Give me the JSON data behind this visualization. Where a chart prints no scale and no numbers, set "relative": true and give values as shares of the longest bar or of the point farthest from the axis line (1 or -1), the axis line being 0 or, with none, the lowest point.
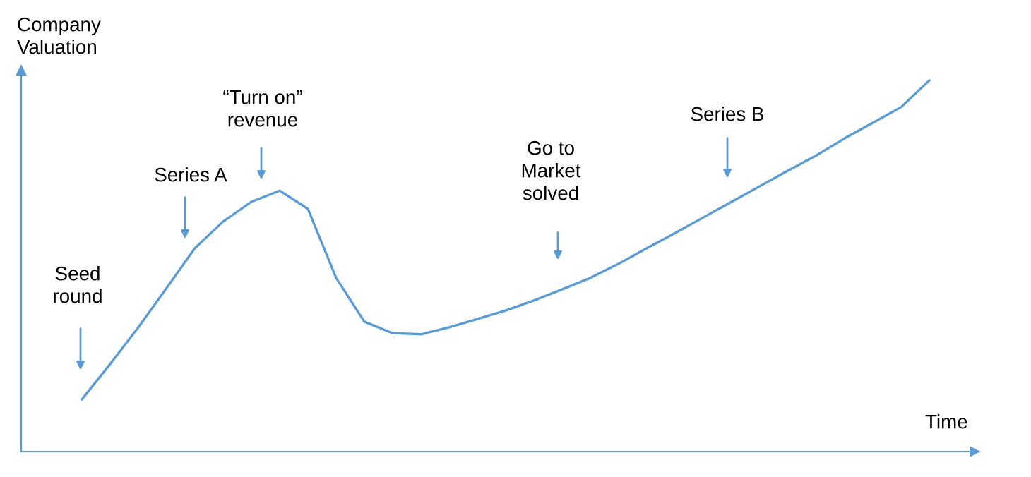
{
  "chart_data": {
    "type": "line",
    "relative": true,
    "xlabel": "Time",
    "ylabel": "Company\nValuation",
    "categories": [
      null,
      null,
      null,
      null,
      null,
      null,
      null,
      null,
      null,
      null,
      null,
      null,
      null,
      null,
      null,
      null,
      null,
      null,
      null,
      null,
      null,
      null,
      null,
      null,
      null,
      null,
      null,
      null,
      null,
      null,
      null
    ],
    "series": [
      {
        "color": "#5b9bd5",
        "values": [
          0.141,
          0.236,
          0.335,
          0.441,
          0.548,
          0.62,
          0.673,
          0.703,
          0.654,
          0.468,
          0.35,
          0.319,
          0.316,
          0.335,
          0.357,
          0.38,
          0.407,
          0.437,
          0.468,
          0.506,
          0.548,
          0.589,
          0.631,
          0.673,
          0.715,
          0.757,
          0.798,
          0.844,
          0.886,
          0.928,
          1.0
        ]
      }
    ],
    "annotations": [
      "Seed\nround",
      "Series A",
      "“Turn on”\nrevenue",
      "Go to\nMarket\nsolved",
      "Series B"
    ],
    "grid": false,
    "marker": "none",
    "line_style": "solid"
  }
}
